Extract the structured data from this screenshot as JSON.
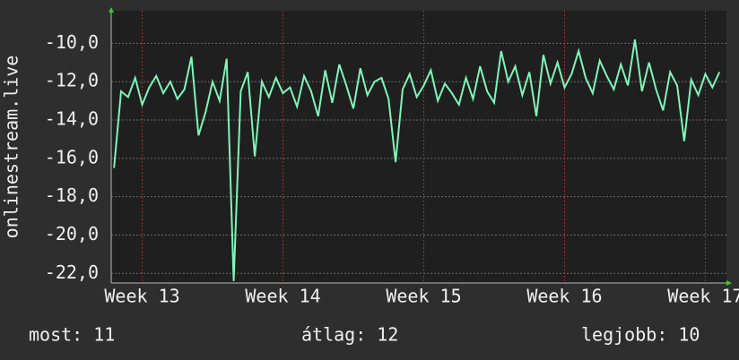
{
  "chart_data": {
    "type": "line",
    "y_label": "onlinestream.live",
    "x": [
      12.8,
      12.85,
      12.9,
      12.95,
      13.0,
      13.05,
      13.1,
      13.15,
      13.2,
      13.25,
      13.3,
      13.35,
      13.4,
      13.45,
      13.5,
      13.55,
      13.6,
      13.65,
      13.7,
      13.75,
      13.8,
      13.85,
      13.9,
      13.95,
      14.0,
      14.05,
      14.1,
      14.15,
      14.2,
      14.25,
      14.3,
      14.35,
      14.4,
      14.45,
      14.5,
      14.55,
      14.6,
      14.65,
      14.7,
      14.75,
      14.8,
      14.85,
      14.9,
      14.95,
      15.0,
      15.05,
      15.1,
      15.15,
      15.2,
      15.25,
      15.3,
      15.35,
      15.4,
      15.45,
      15.5,
      15.55,
      15.6,
      15.65,
      15.7,
      15.75,
      15.8,
      15.85,
      15.9,
      15.95,
      16.0,
      16.05,
      16.1,
      16.15,
      16.2,
      16.25,
      16.3,
      16.35,
      16.4,
      16.45,
      16.5,
      16.55,
      16.6,
      16.65,
      16.7,
      16.75,
      16.8,
      16.85,
      16.9,
      16.95,
      17.0,
      17.05,
      17.1
    ],
    "series": [
      {
        "color": "#7ff5b8",
        "values": [
          -16.5,
          -12.5,
          -12.8,
          -11.8,
          -13.2,
          -12.3,
          -11.7,
          -12.6,
          -12.0,
          -12.9,
          -12.4,
          -10.7,
          -14.8,
          -13.6,
          -12.0,
          -13.0,
          -10.8,
          -22.4,
          -12.5,
          -11.5,
          -15.9,
          -12.0,
          -12.8,
          -11.8,
          -12.6,
          -12.3,
          -13.3,
          -11.7,
          -12.5,
          -13.8,
          -11.4,
          -13.1,
          -11.1,
          -12.2,
          -13.4,
          -11.3,
          -12.7,
          -12.0,
          -11.8,
          -12.9,
          -16.2,
          -12.4,
          -11.6,
          -12.8,
          -12.2,
          -11.4,
          -13.0,
          -12.1,
          -12.6,
          -13.2,
          -11.8,
          -12.9,
          -11.2,
          -12.5,
          -13.1,
          -10.4,
          -12.0,
          -11.2,
          -12.7,
          -11.5,
          -13.8,
          -10.6,
          -12.1,
          -11.0,
          -12.3,
          -11.6,
          -10.4,
          -11.8,
          -12.6,
          -10.9,
          -11.7,
          -12.4,
          -11.1,
          -12.2,
          -9.8,
          -12.5,
          -11.0,
          -12.4,
          -13.5,
          -11.5,
          -12.2,
          -15.1,
          -11.9,
          -12.7,
          -11.6,
          -12.3,
          -11.5
        ]
      }
    ],
    "xlim": [
      12.78,
      17.15
    ],
    "xticks": [
      {
        "value": 13,
        "label": "Week 13"
      },
      {
        "value": 14,
        "label": "Week 14"
      },
      {
        "value": 15,
        "label": "Week 15"
      },
      {
        "value": 16,
        "label": "Week 16"
      },
      {
        "value": 17,
        "label": "Week 17"
      }
    ],
    "ylim": [
      -22.5,
      -8.3
    ],
    "yticks": [
      {
        "value": -22,
        "label": "-22,0"
      },
      {
        "value": -20,
        "label": "-20,0"
      },
      {
        "value": -18,
        "label": "-18,0"
      },
      {
        "value": -16,
        "label": "-16,0"
      },
      {
        "value": -14,
        "label": "-14,0"
      },
      {
        "value": -12,
        "label": "-12,0"
      },
      {
        "value": -10,
        "label": "-10,0"
      }
    ],
    "grid": true,
    "stats": [
      "most: 11",
      "átlag: 12",
      "legjobb: 10"
    ]
  }
}
